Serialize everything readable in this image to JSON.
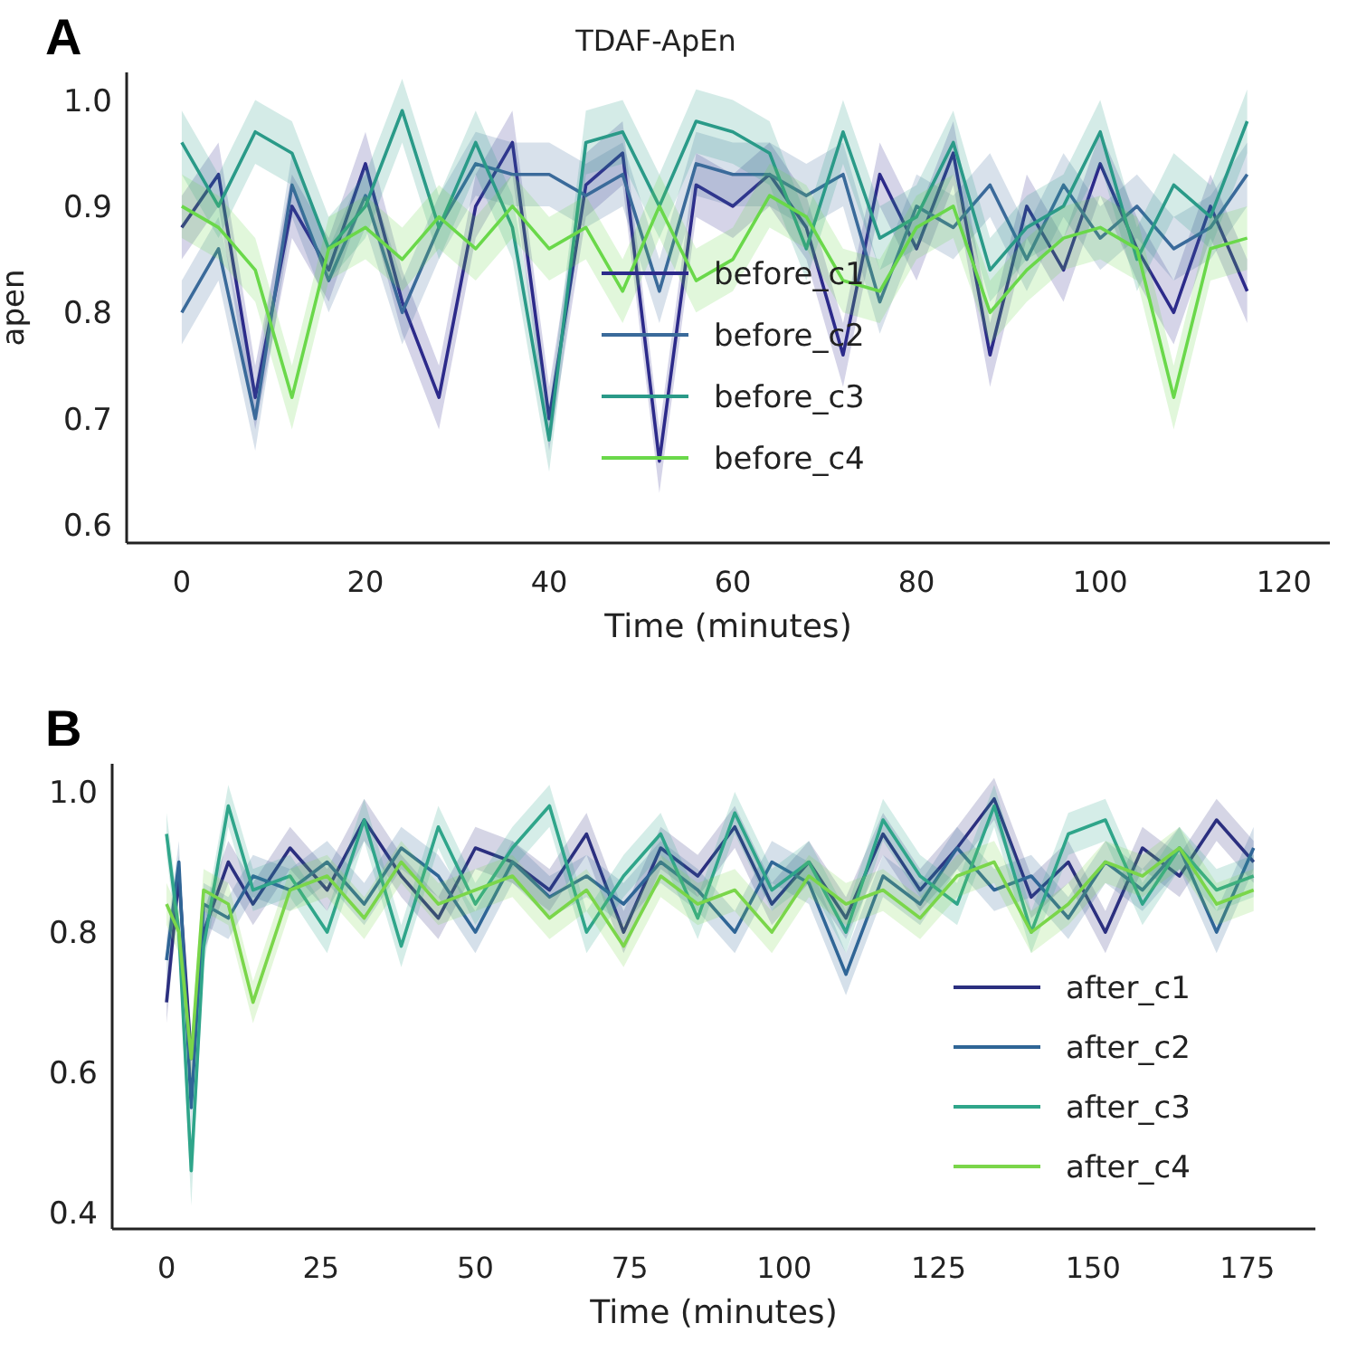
{
  "chart_data": [
    {
      "type": "line",
      "title": "TDAF-ApEn",
      "xlabel": "Time (minutes)",
      "ylabel": "apen",
      "annotations": [
        "A"
      ],
      "xlim": [
        -6,
        125
      ],
      "xticks": [
        0,
        20,
        40,
        60,
        80,
        100,
        120
      ],
      "ylim": [
        0.583,
        1.026
      ],
      "yticks": [
        {
          "value": 0.6,
          "label": "0.6"
        },
        {
          "value": 0.7,
          "label": "0.7"
        },
        {
          "value": 0.8,
          "label": "0.8"
        },
        {
          "value": 0.9,
          "label": "0.9"
        },
        {
          "value": 1.0,
          "label": "1.0"
        }
      ],
      "grid": false,
      "legend": "center",
      "marker": "none",
      "line_style": "solid",
      "x": [
        0,
        4,
        8,
        12,
        16,
        20,
        24,
        28,
        32,
        36,
        40,
        44,
        48,
        52,
        56,
        60,
        64,
        68,
        72,
        76,
        80,
        84,
        88,
        92,
        96,
        100,
        104,
        108,
        112,
        116
      ],
      "series": [
        {
          "name": "before_c1",
          "color": "#2c2a8a",
          "values": [
            0.88,
            0.93,
            0.72,
            0.9,
            0.84,
            0.94,
            0.81,
            0.72,
            0.9,
            0.96,
            0.7,
            0.92,
            0.95,
            0.66,
            0.92,
            0.9,
            0.93,
            0.88,
            0.76,
            0.93,
            0.86,
            0.95,
            0.76,
            0.9,
            0.84,
            0.94,
            0.86,
            0.8,
            0.9,
            0.82
          ],
          "lower": [
            0.85,
            0.9,
            0.69,
            0.87,
            0.81,
            0.91,
            0.78,
            0.69,
            0.87,
            0.93,
            0.67,
            0.89,
            0.92,
            0.63,
            0.89,
            0.87,
            0.9,
            0.85,
            0.73,
            0.9,
            0.83,
            0.92,
            0.73,
            0.87,
            0.81,
            0.91,
            0.83,
            0.77,
            0.87,
            0.79
          ],
          "upper": [
            0.91,
            0.96,
            0.75,
            0.93,
            0.87,
            0.97,
            0.84,
            0.75,
            0.93,
            0.99,
            0.73,
            0.95,
            0.98,
            0.69,
            0.95,
            0.93,
            0.96,
            0.91,
            0.79,
            0.96,
            0.89,
            0.98,
            0.79,
            0.93,
            0.87,
            0.97,
            0.89,
            0.83,
            0.93,
            0.85
          ]
        },
        {
          "name": "before_c2",
          "color": "#3a6a9a",
          "values": [
            0.8,
            0.86,
            0.7,
            0.92,
            0.83,
            0.91,
            0.8,
            0.88,
            0.94,
            0.93,
            0.93,
            0.91,
            0.93,
            0.82,
            0.94,
            0.93,
            0.93,
            0.91,
            0.93,
            0.81,
            0.9,
            0.88,
            0.92,
            0.85,
            0.92,
            0.87,
            0.9,
            0.86,
            0.88,
            0.93
          ],
          "lower": [
            0.77,
            0.83,
            0.67,
            0.89,
            0.8,
            0.88,
            0.77,
            0.85,
            0.91,
            0.9,
            0.9,
            0.88,
            0.9,
            0.79,
            0.91,
            0.9,
            0.9,
            0.88,
            0.9,
            0.78,
            0.87,
            0.85,
            0.89,
            0.82,
            0.89,
            0.84,
            0.87,
            0.83,
            0.85,
            0.9
          ],
          "upper": [
            0.83,
            0.89,
            0.73,
            0.95,
            0.86,
            0.94,
            0.83,
            0.91,
            0.97,
            0.96,
            0.96,
            0.94,
            0.96,
            0.85,
            0.97,
            0.96,
            0.96,
            0.94,
            0.96,
            0.84,
            0.93,
            0.91,
            0.95,
            0.88,
            0.95,
            0.9,
            0.93,
            0.89,
            0.91,
            0.96
          ]
        },
        {
          "name": "before_c3",
          "color": "#2a9a88",
          "values": [
            0.96,
            0.9,
            0.97,
            0.95,
            0.86,
            0.9,
            0.99,
            0.88,
            0.96,
            0.88,
            0.68,
            0.96,
            0.97,
            0.9,
            0.98,
            0.97,
            0.95,
            0.86,
            0.97,
            0.87,
            0.89,
            0.96,
            0.84,
            0.88,
            0.9,
            0.97,
            0.85,
            0.92,
            0.89,
            0.98
          ],
          "lower": [
            0.93,
            0.87,
            0.94,
            0.92,
            0.83,
            0.87,
            0.96,
            0.85,
            0.93,
            0.85,
            0.65,
            0.93,
            0.94,
            0.87,
            0.95,
            0.94,
            0.92,
            0.83,
            0.94,
            0.84,
            0.86,
            0.93,
            0.81,
            0.85,
            0.87,
            0.94,
            0.82,
            0.89,
            0.86,
            0.95
          ],
          "upper": [
            0.99,
            0.93,
            1.0,
            0.98,
            0.89,
            0.93,
            1.02,
            0.91,
            0.99,
            0.91,
            0.71,
            0.99,
            1.0,
            0.93,
            1.01,
            1.0,
            0.98,
            0.89,
            1.0,
            0.9,
            0.92,
            0.99,
            0.87,
            0.91,
            0.93,
            1.0,
            0.88,
            0.95,
            0.92,
            1.01
          ]
        },
        {
          "name": "before_c4",
          "color": "#6ad84a",
          "values": [
            0.9,
            0.88,
            0.84,
            0.72,
            0.86,
            0.88,
            0.85,
            0.89,
            0.86,
            0.9,
            0.86,
            0.88,
            0.82,
            0.9,
            0.83,
            0.85,
            0.91,
            0.89,
            0.83,
            0.82,
            0.88,
            0.9,
            0.8,
            0.84,
            0.87,
            0.88,
            0.86,
            0.72,
            0.86,
            0.87
          ],
          "lower": [
            0.87,
            0.85,
            0.81,
            0.69,
            0.83,
            0.85,
            0.82,
            0.86,
            0.83,
            0.87,
            0.83,
            0.85,
            0.79,
            0.87,
            0.8,
            0.82,
            0.88,
            0.86,
            0.8,
            0.79,
            0.85,
            0.87,
            0.77,
            0.81,
            0.84,
            0.85,
            0.83,
            0.69,
            0.83,
            0.84
          ],
          "upper": [
            0.93,
            0.91,
            0.87,
            0.75,
            0.89,
            0.91,
            0.88,
            0.92,
            0.89,
            0.93,
            0.89,
            0.91,
            0.85,
            0.93,
            0.86,
            0.88,
            0.94,
            0.92,
            0.86,
            0.85,
            0.91,
            0.93,
            0.83,
            0.87,
            0.9,
            0.91,
            0.89,
            0.75,
            0.89,
            0.9
          ]
        }
      ]
    },
    {
      "type": "line",
      "xlabel": "Time (minutes)",
      "annotations": [
        "B"
      ],
      "xlim": [
        -8.8,
        186
      ],
      "xticks": [
        0,
        25,
        50,
        75,
        100,
        125,
        150,
        175
      ],
      "ylim": [
        0.377,
        1.04
      ],
      "yticks": [
        {
          "value": 0.4,
          "label": "0.4"
        },
        {
          "value": 0.6,
          "label": "0.6"
        },
        {
          "value": 0.8,
          "label": "0.8"
        },
        {
          "value": 1.0,
          "label": "1.0"
        }
      ],
      "grid": false,
      "legend": "bottom right",
      "marker": "none",
      "line_style": "solid",
      "x": [
        0,
        2,
        4,
        6,
        10,
        14,
        20,
        26,
        32,
        38,
        44,
        50,
        56,
        62,
        68,
        74,
        80,
        86,
        92,
        98,
        104,
        110,
        116,
        122,
        128,
        134,
        140,
        146,
        152,
        158,
        164,
        170,
        176
      ],
      "series": [
        {
          "name": "after_c1",
          "color": "#2b2f7f",
          "values": [
            0.7,
            0.88,
            0.62,
            0.8,
            0.9,
            0.84,
            0.92,
            0.86,
            0.96,
            0.88,
            0.82,
            0.92,
            0.9,
            0.86,
            0.94,
            0.8,
            0.92,
            0.88,
            0.95,
            0.84,
            0.9,
            0.82,
            0.94,
            0.86,
            0.92,
            0.99,
            0.85,
            0.9,
            0.8,
            0.92,
            0.88,
            0.96,
            0.9
          ],
          "lower": [
            0.67,
            0.85,
            0.59,
            0.77,
            0.87,
            0.81,
            0.89,
            0.83,
            0.93,
            0.85,
            0.79,
            0.89,
            0.87,
            0.83,
            0.91,
            0.77,
            0.89,
            0.85,
            0.92,
            0.81,
            0.87,
            0.79,
            0.91,
            0.83,
            0.89,
            0.96,
            0.82,
            0.87,
            0.77,
            0.89,
            0.85,
            0.93,
            0.87
          ],
          "upper": [
            0.73,
            0.91,
            0.65,
            0.83,
            0.93,
            0.87,
            0.95,
            0.89,
            0.99,
            0.91,
            0.85,
            0.95,
            0.93,
            0.89,
            0.97,
            0.83,
            0.95,
            0.91,
            0.98,
            0.87,
            0.93,
            0.85,
            0.97,
            0.89,
            0.95,
            1.02,
            0.88,
            0.93,
            0.83,
            0.95,
            0.91,
            0.99,
            0.93
          ]
        },
        {
          "name": "after_c2",
          "color": "#2f6596",
          "values": [
            0.76,
            0.9,
            0.55,
            0.84,
            0.82,
            0.88,
            0.86,
            0.9,
            0.84,
            0.92,
            0.88,
            0.8,
            0.9,
            0.85,
            0.88,
            0.84,
            0.9,
            0.86,
            0.8,
            0.9,
            0.87,
            0.74,
            0.88,
            0.84,
            0.92,
            0.86,
            0.88,
            0.82,
            0.9,
            0.86,
            0.92,
            0.8,
            0.92
          ],
          "lower": [
            0.73,
            0.87,
            0.52,
            0.81,
            0.79,
            0.85,
            0.83,
            0.87,
            0.81,
            0.89,
            0.85,
            0.77,
            0.87,
            0.82,
            0.85,
            0.81,
            0.87,
            0.83,
            0.77,
            0.87,
            0.84,
            0.71,
            0.85,
            0.81,
            0.89,
            0.83,
            0.85,
            0.79,
            0.87,
            0.83,
            0.89,
            0.77,
            0.89
          ],
          "upper": [
            0.79,
            0.93,
            0.58,
            0.87,
            0.85,
            0.91,
            0.89,
            0.93,
            0.87,
            0.95,
            0.91,
            0.83,
            0.93,
            0.88,
            0.91,
            0.87,
            0.93,
            0.89,
            0.83,
            0.93,
            0.9,
            0.77,
            0.91,
            0.87,
            0.95,
            0.89,
            0.91,
            0.85,
            0.93,
            0.89,
            0.95,
            0.83,
            0.95
          ]
        },
        {
          "name": "after_c3",
          "color": "#2fa58a",
          "values": [
            0.94,
            0.8,
            0.46,
            0.78,
            0.98,
            0.86,
            0.88,
            0.8,
            0.96,
            0.78,
            0.95,
            0.84,
            0.92,
            0.98,
            0.8,
            0.88,
            0.94,
            0.82,
            0.97,
            0.86,
            0.9,
            0.8,
            0.96,
            0.88,
            0.84,
            0.98,
            0.8,
            0.94,
            0.96,
            0.84,
            0.92,
            0.86,
            0.88
          ],
          "lower": [
            0.91,
            0.77,
            0.41,
            0.75,
            0.95,
            0.83,
            0.85,
            0.77,
            0.93,
            0.75,
            0.92,
            0.81,
            0.89,
            0.95,
            0.77,
            0.85,
            0.91,
            0.79,
            0.94,
            0.83,
            0.87,
            0.77,
            0.93,
            0.85,
            0.81,
            0.95,
            0.77,
            0.91,
            0.93,
            0.81,
            0.89,
            0.83,
            0.85
          ],
          "upper": [
            0.97,
            0.83,
            0.51,
            0.81,
            1.01,
            0.89,
            0.91,
            0.83,
            0.99,
            0.81,
            0.98,
            0.87,
            0.95,
            1.01,
            0.83,
            0.91,
            0.97,
            0.85,
            1.0,
            0.89,
            0.93,
            0.83,
            0.99,
            0.91,
            0.87,
            1.01,
            0.83,
            0.97,
            0.99,
            0.87,
            0.95,
            0.89,
            0.91
          ]
        },
        {
          "name": "after_c4",
          "color": "#7ad64a",
          "values": [
            0.84,
            0.8,
            0.62,
            0.86,
            0.84,
            0.7,
            0.86,
            0.88,
            0.82,
            0.9,
            0.84,
            0.86,
            0.88,
            0.82,
            0.86,
            0.78,
            0.88,
            0.84,
            0.86,
            0.8,
            0.88,
            0.84,
            0.86,
            0.82,
            0.88,
            0.9,
            0.8,
            0.84,
            0.9,
            0.88,
            0.92,
            0.84,
            0.86
          ],
          "lower": [
            0.81,
            0.77,
            0.59,
            0.83,
            0.81,
            0.67,
            0.83,
            0.85,
            0.79,
            0.87,
            0.81,
            0.83,
            0.85,
            0.79,
            0.83,
            0.75,
            0.85,
            0.81,
            0.83,
            0.77,
            0.85,
            0.81,
            0.83,
            0.79,
            0.85,
            0.87,
            0.77,
            0.81,
            0.87,
            0.85,
            0.89,
            0.81,
            0.83
          ],
          "upper": [
            0.87,
            0.83,
            0.65,
            0.89,
            0.87,
            0.73,
            0.89,
            0.91,
            0.85,
            0.93,
            0.87,
            0.89,
            0.91,
            0.85,
            0.89,
            0.81,
            0.91,
            0.87,
            0.89,
            0.83,
            0.91,
            0.87,
            0.89,
            0.85,
            0.91,
            0.93,
            0.83,
            0.87,
            0.93,
            0.91,
            0.95,
            0.87,
            0.89
          ]
        }
      ]
    }
  ]
}
